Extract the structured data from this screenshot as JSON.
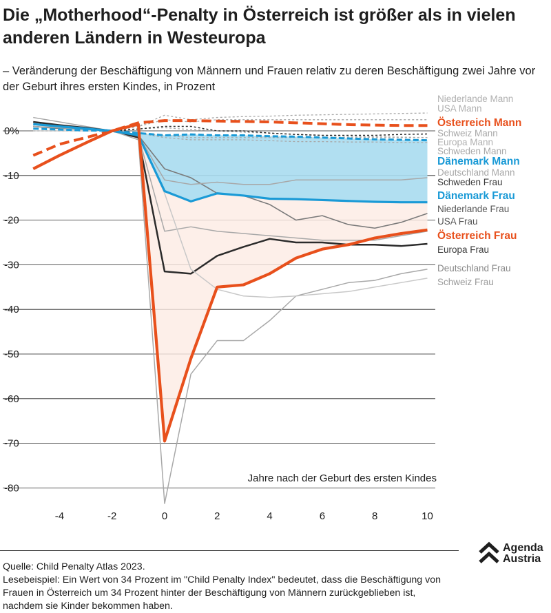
{
  "header": {
    "title": "Die „Motherhood“-Penalty in Österreich ist größer als in vielen anderen Ländern in Westeuropa",
    "subtitle": "– Veränderung der Beschäftigung von Männern und Frauen relativ zu deren Beschäftigung zwei Jahre vor der Geburt ihres ersten Kindes, in Prozent"
  },
  "footer": {
    "source": "Quelle: Child Penalty Atlas 2023.",
    "note": "Lesebeispiel: Ein Wert von 34 Prozent im \"Child Penalty Index\" bedeutet, dass die Beschäftigung von Frauen in Österreich um 34 Prozent hinter der Beschäftigung von Männern zurückgeblieben ist, nachdem sie Kinder bekommen haben."
  },
  "logo": {
    "line1": "Agenda",
    "line2": "Austria"
  },
  "colors": {
    "austria": "#e8501c",
    "denmark": "#1a9ad6",
    "europe": "#2b2b2b",
    "grey": "#a8a8a8",
    "grey_dark": "#7a7a7a",
    "band_denmark": "#a9dcef",
    "band_austria": "#fcebe3"
  },
  "chart_data": {
    "type": "line",
    "xlabel": "Jahre nach der Geburt des ersten Kindes",
    "ylabel": "",
    "xlim": [
      -5,
      10
    ],
    "ylim": [
      -85,
      5
    ],
    "x_ticks": [
      -4,
      -2,
      0,
      2,
      4,
      6,
      8,
      10
    ],
    "x_tick_labels": [
      "-4",
      "-2",
      "0",
      "2",
      "4",
      "6",
      "8",
      "10"
    ],
    "y_ticks": [
      0,
      -10,
      -20,
      -30,
      -40,
      -50,
      -60,
      -70,
      -80
    ],
    "y_tick_labels": [
      "0%",
      "-10",
      "-20",
      "-30",
      "-40",
      "-50",
      "-60",
      "-70",
      "-80"
    ],
    "x": [
      -5,
      -4,
      -3,
      -2,
      -1,
      0,
      1,
      2,
      3,
      4,
      5,
      6,
      7,
      8,
      9,
      10
    ],
    "series": [
      {
        "name": "Niederlande Mann",
        "group": "mann",
        "style": "grey-dotted",
        "values": [
          0,
          0,
          0,
          0,
          1,
          3.5,
          2.5,
          3,
          3.2,
          3.3,
          3.5,
          3.6,
          3.7,
          3.8,
          3.9,
          4
        ]
      },
      {
        "name": "USA Mann",
        "group": "mann",
        "style": "grey-dotted",
        "values": [
          0,
          0,
          0,
          0,
          1,
          2.5,
          2,
          2.5,
          2.5,
          2.5,
          2.5,
          2.5,
          2.5,
          2.5,
          2.5,
          2.5
        ]
      },
      {
        "name": "Österreich Mann",
        "group": "mann",
        "style": "austria-dashed",
        "highlight": true,
        "values": [
          -5.5,
          -3,
          -1.5,
          0,
          1.8,
          2.3,
          2.3,
          2.2,
          2.1,
          2,
          1.8,
          1.6,
          1.4,
          1.3,
          1.2,
          1.2
        ]
      },
      {
        "name": "Schweiz Mann",
        "group": "mann",
        "style": "grey-dotted",
        "values": [
          0,
          0,
          0,
          0,
          0.5,
          0.7,
          0.3,
          0,
          -0.3,
          -0.5,
          -0.8,
          -1,
          -1.2,
          -1.3,
          -1.4,
          -1.5
        ]
      },
      {
        "name": "Europa Mann",
        "group": "mann",
        "style": "black-dotted",
        "values": [
          1,
          0.6,
          0.3,
          0,
          0.4,
          1,
          1,
          0,
          0,
          -0.5,
          -0.8,
          -1,
          -1,
          -1,
          -0.8,
          -0.7
        ]
      },
      {
        "name": "Schweden Mann",
        "group": "mann",
        "style": "grey-dotted",
        "values": [
          0,
          0,
          0,
          0,
          -0.5,
          -1.5,
          -2,
          -2,
          -2,
          -2.2,
          -2.4,
          -2.4,
          -2.5,
          -2.5,
          -2.6,
          -2.6
        ]
      },
      {
        "name": "Dänemark Mann",
        "group": "mann",
        "style": "denmark-dashed",
        "highlight": true,
        "values": [
          0.5,
          0.3,
          0.1,
          0,
          -0.5,
          -1,
          -0.8,
          -1,
          -1,
          -1.2,
          -1.3,
          -1.5,
          -1.7,
          -1.9,
          -2,
          -2.1
        ]
      },
      {
        "name": "Deutschland Mann",
        "group": "mann",
        "style": "grey-dotted",
        "values": [
          0,
          0,
          0,
          0,
          -0.5,
          -1,
          -1.5,
          -1.5,
          -1.5,
          -1.5,
          -1.5,
          -1.5,
          -1.5,
          -1.5,
          -1.5,
          -1.5
        ]
      },
      {
        "name": "Schweden Frau",
        "group": "frau",
        "style": "grey-line",
        "values": [
          3,
          2,
          1,
          0,
          -1,
          -22.5,
          -21.5,
          -22.5,
          -23,
          -23.5,
          -24,
          -24.5,
          -24.5,
          -24.5,
          -23.5,
          -22.5
        ]
      },
      {
        "name": "Dänemark Frau",
        "group": "frau",
        "style": "denmark-line",
        "highlight": true,
        "values": [
          1.5,
          1,
          0.5,
          0,
          -1,
          -13.5,
          -15.8,
          -14,
          -14.5,
          -15.2,
          -15.3,
          -15.5,
          -15.7,
          -15.9,
          -16,
          -16
        ]
      },
      {
        "name": "Niederlande Frau",
        "group": "frau",
        "style": "grey-dark-line",
        "values": [
          1,
          0.5,
          0.3,
          0,
          -1,
          -8.5,
          -10.5,
          -14,
          -14.5,
          -16.5,
          -20,
          -19,
          -21,
          -21.8,
          -20.5,
          -18.5
        ]
      },
      {
        "name": "USA Frau",
        "group": "frau",
        "style": "grey-line",
        "values": [
          2,
          1.3,
          0.7,
          0,
          -1,
          -11,
          -12,
          -11.5,
          -12,
          -12,
          -11,
          -11,
          -11,
          -11,
          -11,
          -10.5
        ]
      },
      {
        "name": "Österreich Frau",
        "group": "frau",
        "style": "austria-line",
        "highlight": true,
        "values": [
          -8.5,
          -5.5,
          -2.7,
          0,
          1.5,
          -69.5,
          -51,
          -35,
          -34.5,
          -32,
          -28.5,
          -26.5,
          -25.5,
          -24,
          -23,
          -22.2
        ]
      },
      {
        "name": "Europa Frau",
        "group": "frau",
        "style": "black-line",
        "values": [
          2,
          1.3,
          0.7,
          0,
          -1.5,
          -31.5,
          -32,
          -28,
          -26,
          -24.2,
          -25,
          -25,
          -25.5,
          -25.5,
          -25.8,
          -25.3
        ]
      },
      {
        "name": "Deutschland Frau",
        "group": "frau",
        "style": "grey-line",
        "values": [
          1,
          0.7,
          0.3,
          0,
          -2,
          -83.5,
          -54.5,
          -47,
          -47,
          -42.5,
          -37,
          -35.5,
          -34,
          -33.5,
          -32,
          -31
        ]
      },
      {
        "name": "Schweiz Frau",
        "group": "frau",
        "style": "grey-light-line",
        "values": [
          0,
          0,
          0,
          0,
          -1,
          -14,
          -31,
          -35.5,
          -37,
          -37.3,
          -37,
          -36.5,
          -36,
          -35,
          -34,
          -33
        ]
      }
    ],
    "bands": [
      {
        "name": "Dänemark",
        "upper": "Dänemark Mann",
        "lower": "Dänemark Frau",
        "from_x": -1
      },
      {
        "name": "Österreich",
        "upper": "Dänemark Frau",
        "lower": "Österreich Frau",
        "from_x": -1
      }
    ]
  }
}
